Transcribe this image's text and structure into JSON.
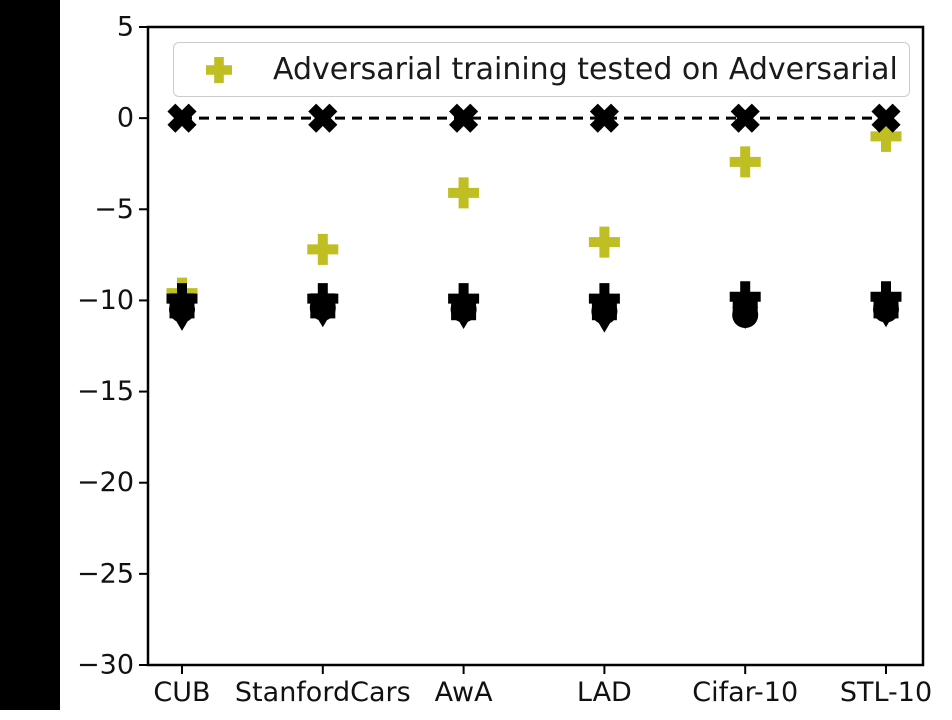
{
  "figure": {
    "background": "#ffffff",
    "left_bar_color": "#000000"
  },
  "legend": {
    "label": "Adversarial training tested on Adversarial",
    "marker": "plus-icon",
    "marker_color": "#bfbe22",
    "border_color": "#cccccc"
  },
  "chart_data": {
    "type": "scatter",
    "title": "",
    "xlabel": "",
    "ylabel": "",
    "grid": false,
    "legend_position": "upper center inside",
    "categories": [
      "CUB",
      "StanfordCars",
      "AwA",
      "LAD",
      "Cifar-10",
      "STL-10"
    ],
    "ylim": [
      -30,
      5
    ],
    "ytick_values": [
      5,
      0,
      -5,
      -10,
      -15,
      -20,
      -25,
      -30
    ],
    "ytick_labels": [
      "5",
      "0",
      "−5",
      "−10",
      "−15",
      "−20",
      "−25",
      "−30"
    ],
    "zero_reference": {
      "line_style": "dashed",
      "color": "#000000",
      "marker": "X",
      "values": [
        0,
        0,
        0,
        0,
        0,
        0
      ]
    },
    "series": [
      {
        "name": "Adversarial training tested on Adversarial",
        "marker": "plus",
        "color": "#bfbe22",
        "in_legend": true,
        "values": [
          -9.6,
          -7.2,
          -4.1,
          -6.8,
          -2.4,
          -1.0
        ]
      },
      {
        "name": "overlapping-black-plus",
        "marker": "plus",
        "color": "#000000",
        "in_legend": false,
        "values": [
          -9.9,
          -9.9,
          -9.9,
          -9.9,
          -9.8,
          -9.8
        ]
      },
      {
        "name": "overlapping-black-square",
        "marker": "square",
        "color": "#000000",
        "in_legend": false,
        "values": [
          -10.3,
          -10.3,
          -10.4,
          -10.4,
          -10.3,
          -10.3
        ]
      },
      {
        "name": "overlapping-black-circle",
        "marker": "circle",
        "color": "#000000",
        "in_legend": false,
        "values": [
          -10.5,
          -10.4,
          -10.5,
          -10.6,
          -10.8,
          -10.5
        ]
      },
      {
        "name": "overlapping-black-triangle",
        "marker": "triangle-down",
        "color": "#000000",
        "in_legend": false,
        "values": [
          -10.9,
          -10.7,
          -10.8,
          -11.0,
          -10.8,
          -10.7
        ]
      }
    ]
  }
}
